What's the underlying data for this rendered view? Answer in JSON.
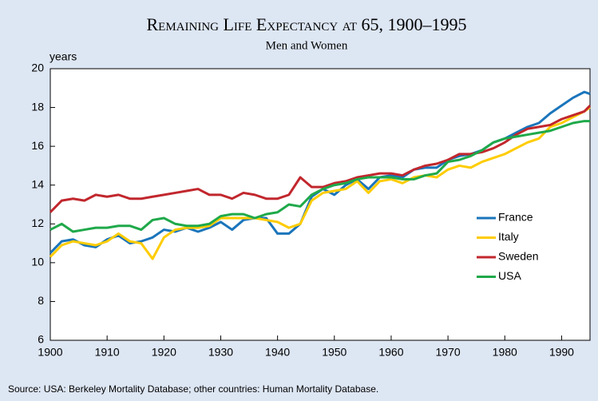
{
  "chart_data": {
    "type": "line",
    "title": "Remaining Life Expectancy at 65, 1900–1995",
    "subtitle": "Men and Women",
    "y_label": "years",
    "source": "Source: USA: Berkeley Mortality Database; other countries: Human Mortality Database.",
    "x": [
      1900,
      1902,
      1904,
      1906,
      1908,
      1910,
      1912,
      1914,
      1916,
      1918,
      1920,
      1922,
      1924,
      1926,
      1928,
      1930,
      1932,
      1934,
      1936,
      1938,
      1940,
      1942,
      1944,
      1946,
      1948,
      1950,
      1952,
      1954,
      1956,
      1958,
      1960,
      1962,
      1964,
      1966,
      1968,
      1970,
      1972,
      1974,
      1976,
      1978,
      1980,
      1982,
      1984,
      1986,
      1988,
      1990,
      1992,
      1994,
      1995
    ],
    "series": [
      {
        "name": "France",
        "color": "#1a75bb",
        "values": [
          10.5,
          11.1,
          11.2,
          10.9,
          10.8,
          11.2,
          11.4,
          11.0,
          11.1,
          11.3,
          11.7,
          11.6,
          11.8,
          11.6,
          11.8,
          12.1,
          11.7,
          12.2,
          12.3,
          12.3,
          11.5,
          11.5,
          12.0,
          13.4,
          13.8,
          13.5,
          14.0,
          14.3,
          13.8,
          14.4,
          14.5,
          14.4,
          14.8,
          14.9,
          14.9,
          15.3,
          15.5,
          15.6,
          15.8,
          16.2,
          16.4,
          16.7,
          17.0,
          17.2,
          17.7,
          18.1,
          18.5,
          18.8,
          18.7
        ]
      },
      {
        "name": "Italy",
        "color": "#ffcc00",
        "values": [
          10.3,
          10.9,
          11.1,
          11.0,
          10.9,
          11.1,
          11.5,
          11.1,
          11.0,
          10.2,
          11.3,
          11.7,
          11.8,
          11.8,
          11.9,
          12.3,
          12.3,
          12.3,
          12.3,
          12.2,
          12.1,
          11.8,
          12.0,
          13.2,
          13.6,
          13.7,
          13.8,
          14.2,
          13.6,
          14.2,
          14.3,
          14.1,
          14.4,
          14.5,
          14.4,
          14.8,
          15.0,
          14.9,
          15.2,
          15.4,
          15.6,
          15.9,
          16.2,
          16.4,
          17.0,
          17.2,
          17.5,
          17.8,
          18.0
        ]
      },
      {
        "name": "Sweden",
        "color": "#c1272d",
        "values": [
          12.6,
          13.2,
          13.3,
          13.2,
          13.5,
          13.4,
          13.5,
          13.3,
          13.3,
          13.4,
          13.5,
          13.6,
          13.7,
          13.8,
          13.5,
          13.5,
          13.3,
          13.6,
          13.5,
          13.3,
          13.3,
          13.5,
          14.4,
          13.9,
          13.9,
          14.1,
          14.2,
          14.4,
          14.5,
          14.6,
          14.6,
          14.5,
          14.8,
          15.0,
          15.1,
          15.3,
          15.6,
          15.6,
          15.7,
          15.9,
          16.2,
          16.6,
          16.9,
          17.0,
          17.1,
          17.4,
          17.6,
          17.8,
          18.1
        ]
      },
      {
        "name": "USA",
        "color": "#1fa94a",
        "values": [
          11.7,
          12.0,
          11.6,
          11.7,
          11.8,
          11.8,
          11.9,
          11.9,
          11.7,
          12.2,
          12.3,
          12.0,
          11.9,
          11.9,
          12.0,
          12.4,
          12.5,
          12.5,
          12.3,
          12.5,
          12.6,
          13.0,
          12.9,
          13.5,
          13.8,
          14.0,
          14.1,
          14.3,
          14.4,
          14.4,
          14.4,
          14.3,
          14.3,
          14.5,
          14.6,
          15.2,
          15.3,
          15.5,
          15.8,
          16.2,
          16.4,
          16.5,
          16.6,
          16.7,
          16.8,
          17.0,
          17.2,
          17.3,
          17.3
        ]
      }
    ],
    "xlim": [
      1900,
      1995
    ],
    "xticks": [
      1900,
      1910,
      1920,
      1930,
      1940,
      1950,
      1960,
      1970,
      1980,
      1990
    ],
    "ylim": [
      6,
      20
    ],
    "yticks": [
      6,
      8,
      10,
      12,
      14,
      16,
      18,
      20
    ],
    "legend": "right"
  }
}
